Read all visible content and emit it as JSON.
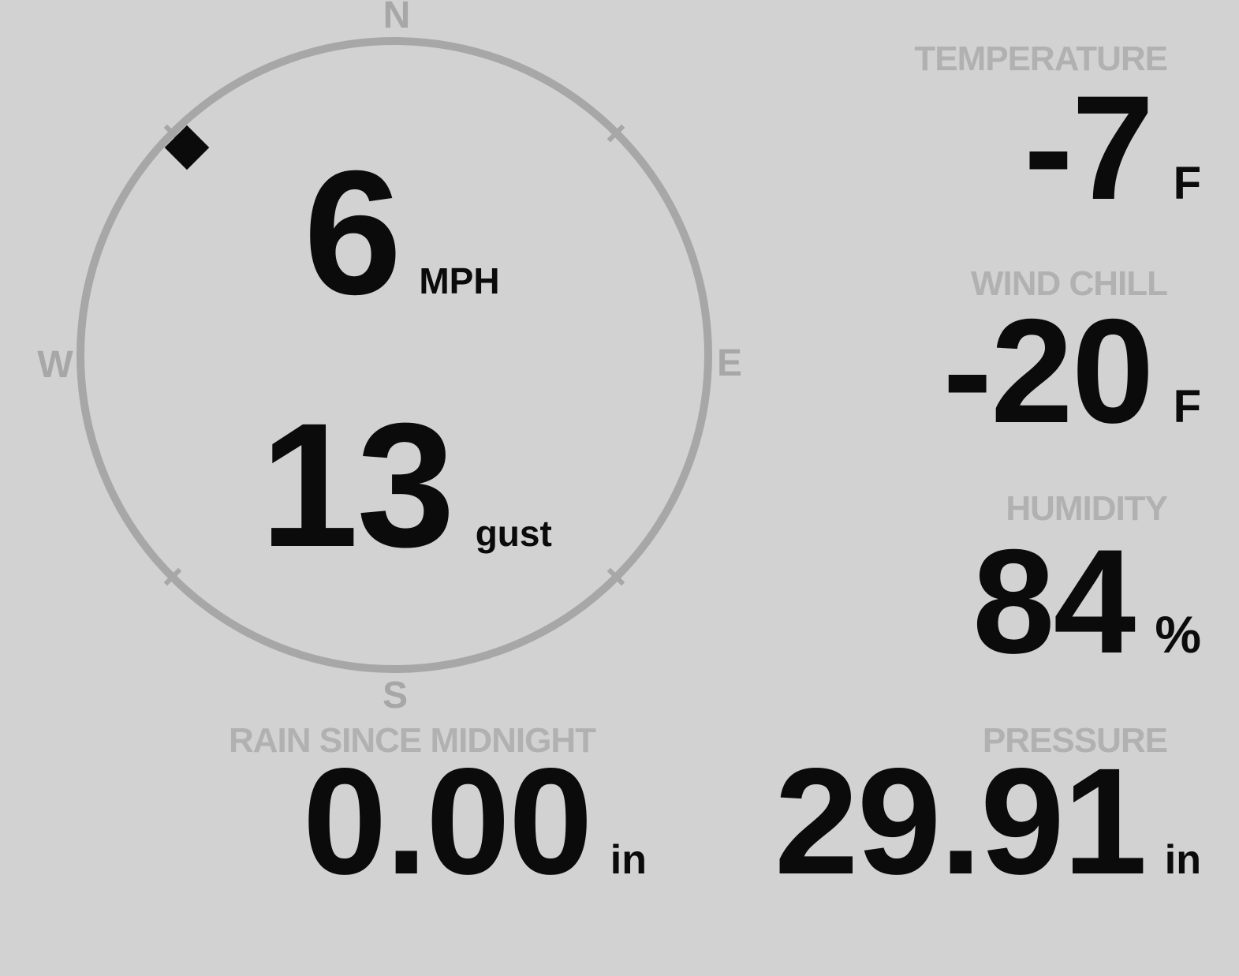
{
  "theme": {
    "background": "#d2d2d2",
    "gauge_gray": "#a7a7a7",
    "label_gray": "#b1b1b1",
    "value_black": "#0b0b0b"
  },
  "compass": {
    "cardinals": {
      "north": "N",
      "east": "E",
      "south": "S",
      "west": "W"
    },
    "wind": {
      "speed": "6",
      "speed_unit": "MPH",
      "gust": "13",
      "gust_unit": "gust",
      "direction_deg": 315
    }
  },
  "metrics": {
    "temperature": {
      "label": "TEMPERATURE",
      "value": "-7",
      "unit": "F"
    },
    "wind_chill": {
      "label": "WIND CHILL",
      "value": "-20",
      "unit": "F"
    },
    "humidity": {
      "label": "HUMIDITY",
      "value": "84",
      "unit": "%"
    },
    "rain_since_midnight": {
      "label": "RAIN SINCE MIDNIGHT",
      "value": "0.00",
      "unit": "in"
    },
    "pressure": {
      "label": "PRESSURE",
      "value": "29.91",
      "unit": "in"
    }
  }
}
